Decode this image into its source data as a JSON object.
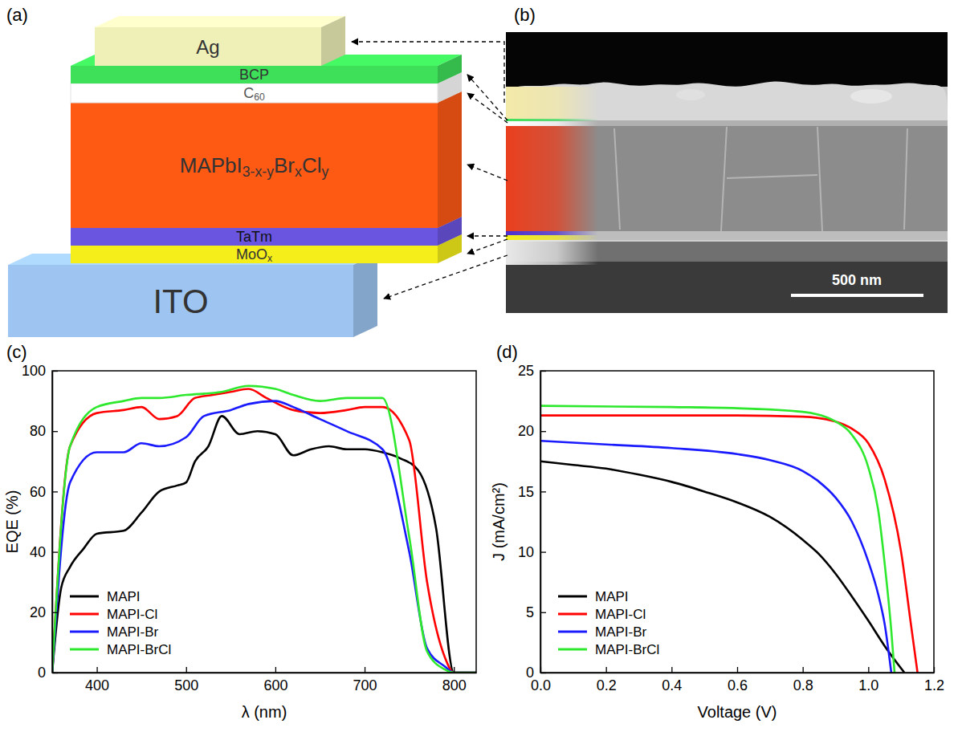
{
  "diagram": {
    "label": "(a)",
    "layers": [
      "Ag",
      "BCP",
      "C60",
      "MAPbI3-x-yBrxCly",
      "TaTm",
      "MoOx",
      "ITO"
    ]
  },
  "micrograph": {
    "label": "(b)",
    "scale_bar": "500 nm"
  },
  "chart_data": [
    {
      "label": "(c)",
      "type": "line",
      "x_label": "λ (nm)",
      "y_label": "EQE (%)",
      "xlim": [
        350,
        825
      ],
      "xticks": [
        400,
        500,
        600,
        700,
        800
      ],
      "ylim": [
        0,
        100
      ],
      "yticks": [
        0,
        20,
        40,
        60,
        80,
        100
      ],
      "legend": "lower left",
      "series": [
        {
          "name": "MAPI",
          "color": "#000000",
          "x": [
            350,
            360,
            370,
            385,
            400,
            430,
            450,
            470,
            490,
            500,
            510,
            525,
            540,
            560,
            580,
            600,
            620,
            640,
            660,
            680,
            700,
            720,
            740,
            760,
            780,
            800,
            825
          ],
          "values": [
            0,
            28,
            35,
            41,
            46,
            47,
            53,
            60,
            62,
            63,
            70,
            75,
            85,
            79,
            80,
            79,
            72,
            74,
            75,
            74,
            74,
            73,
            71,
            67,
            48,
            0,
            0
          ]
        },
        {
          "name": "MAPI-Cl",
          "color": "#ff0000",
          "x": [
            350,
            370,
            400,
            430,
            450,
            470,
            490,
            510,
            530,
            550,
            570,
            590,
            620,
            650,
            680,
            700,
            720,
            750,
            770,
            790,
            800,
            825
          ],
          "values": [
            0,
            75,
            86,
            87,
            88,
            84,
            85,
            91,
            92,
            93,
            94,
            91,
            87,
            86,
            87,
            88,
            88,
            77,
            30,
            5,
            0,
            0
          ]
        },
        {
          "name": "MAPI-Br",
          "color": "#1a1aff",
          "x": [
            350,
            370,
            400,
            430,
            450,
            470,
            500,
            520,
            550,
            570,
            600,
            620,
            650,
            680,
            720,
            750,
            770,
            790,
            800,
            825
          ],
          "values": [
            0,
            63,
            73,
            73,
            76,
            75,
            78,
            85,
            87,
            89,
            90,
            88,
            84,
            80,
            74,
            40,
            8,
            2,
            0,
            0
          ]
        },
        {
          "name": "MAPI-BrCl",
          "color": "#2ee82e",
          "x": [
            350,
            370,
            400,
            430,
            450,
            470,
            500,
            540,
            570,
            600,
            620,
            650,
            680,
            700,
            720,
            750,
            770,
            790,
            800,
            825
          ],
          "values": [
            0,
            75,
            88,
            90,
            91,
            91,
            92,
            93,
            95,
            94,
            92,
            90,
            91,
            91,
            91,
            45,
            7,
            1,
            0,
            0
          ]
        }
      ]
    },
    {
      "label": "(d)",
      "type": "line",
      "x_label": "Voltage (V)",
      "y_label": "J (mA/cm²)",
      "xlim": [
        0,
        1.2
      ],
      "xticks": [
        {
          "value": 0,
          "label": "0.0"
        },
        0.2,
        0.4,
        0.6,
        0.8,
        {
          "value": 1,
          "label": "1.0"
        },
        1.2
      ],
      "ylim": [
        0,
        25
      ],
      "yticks": [
        0,
        5,
        10,
        15,
        20,
        25
      ],
      "legend": "lower left",
      "series": [
        {
          "name": "MAPI",
          "color": "#000000",
          "x": [
            0,
            0.1,
            0.2,
            0.3,
            0.4,
            0.5,
            0.6,
            0.7,
            0.8,
            0.85,
            0.9,
            0.95,
            1.0,
            1.05,
            1.11
          ],
          "values": [
            17.5,
            17.2,
            16.9,
            16.4,
            15.8,
            15.0,
            14.1,
            12.9,
            11.0,
            9.8,
            8.2,
            6.3,
            4.3,
            2.2,
            0
          ]
        },
        {
          "name": "MAPI-Cl",
          "color": "#ff0000",
          "x": [
            0,
            0.2,
            0.4,
            0.6,
            0.8,
            0.9,
            0.95,
            1.0,
            1.05,
            1.1,
            1.13,
            1.15
          ],
          "values": [
            21.3,
            21.3,
            21.3,
            21.3,
            21.2,
            20.8,
            20.2,
            19.0,
            16.0,
            10.0,
            4.0,
            0
          ]
        },
        {
          "name": "MAPI-Br",
          "color": "#1a1aff",
          "x": [
            0,
            0.2,
            0.4,
            0.6,
            0.7,
            0.8,
            0.85,
            0.9,
            0.95,
            1.0,
            1.03,
            1.05,
            1.07
          ],
          "values": [
            19.2,
            18.9,
            18.6,
            18.1,
            17.6,
            16.7,
            15.8,
            14.5,
            12.5,
            9.2,
            6.5,
            4.0,
            0
          ]
        },
        {
          "name": "MAPI-BrCl",
          "color": "#2ee82e",
          "x": [
            0,
            0.4,
            0.6,
            0.8,
            0.9,
            0.95,
            1.0,
            1.03,
            1.05,
            1.07,
            1.08
          ],
          "values": [
            22.1,
            22.0,
            21.9,
            21.6,
            20.8,
            19.7,
            17.0,
            13.5,
            9.0,
            3.5,
            0
          ]
        }
      ]
    }
  ]
}
